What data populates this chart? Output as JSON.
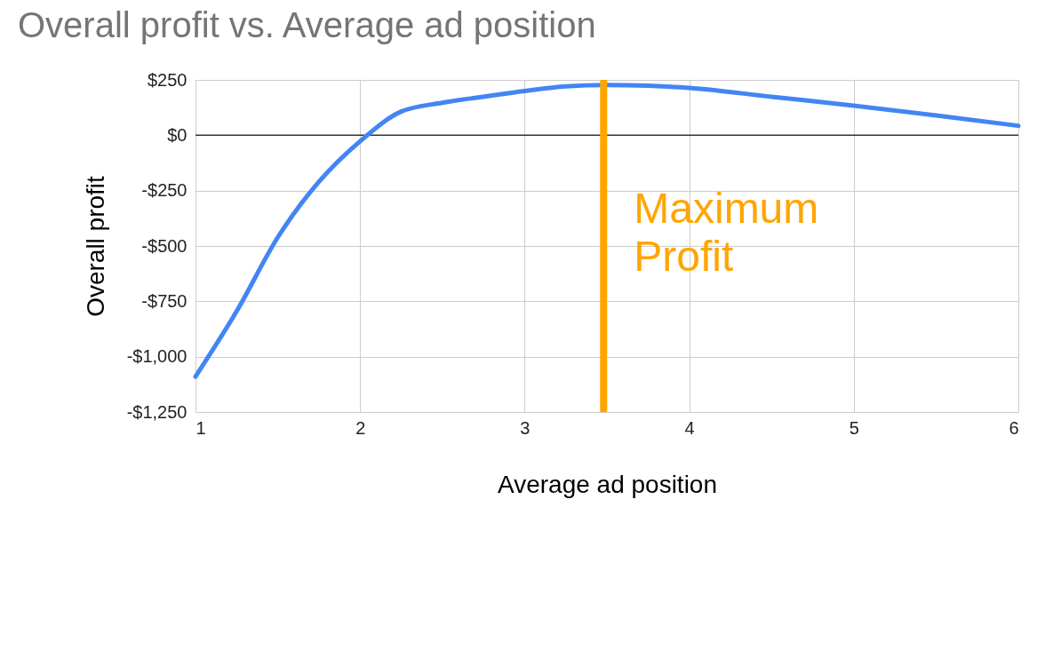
{
  "chart_data": {
    "type": "line",
    "title": "Overall profit vs. Average ad position",
    "xlabel": "Average ad position",
    "ylabel": "Overall profit",
    "series": [
      {
        "color": "#4285f4",
        "x": [
          1,
          1.25,
          1.5,
          1.75,
          2,
          2.25,
          2.5,
          2.75,
          3,
          3.25,
          3.5,
          3.75,
          4,
          4.5,
          5,
          5.5,
          6
        ],
        "values": [
          -1090,
          -795,
          -461,
          -210,
          -27,
          107,
          147,
          174,
          200,
          221,
          227,
          224,
          214,
          174,
          134,
          90,
          43
        ]
      }
    ],
    "xlim": [
      1,
      6
    ],
    "xticks": [
      1,
      2,
      3,
      4,
      5,
      6
    ],
    "ylim": [
      -1250,
      250
    ],
    "yticks": [
      {
        "value": -1250,
        "label": "-$1,250"
      },
      {
        "value": -1000,
        "label": "-$1,000"
      },
      {
        "value": -750,
        "label": "-$750"
      },
      {
        "value": -500,
        "label": "-$500"
      },
      {
        "value": -250,
        "label": "-$250"
      },
      {
        "value": 0,
        "label": "$0"
      },
      {
        "value": 250,
        "label": "$250"
      }
    ],
    "ref_lines": [
      {
        "axis": "y",
        "value": 0,
        "color": "#333333"
      },
      {
        "axis": "x",
        "value": 3.48,
        "label": "Maximum Profit",
        "color": "#ffa500"
      }
    ],
    "grid": true,
    "marker": "none",
    "line_style": "solid"
  }
}
